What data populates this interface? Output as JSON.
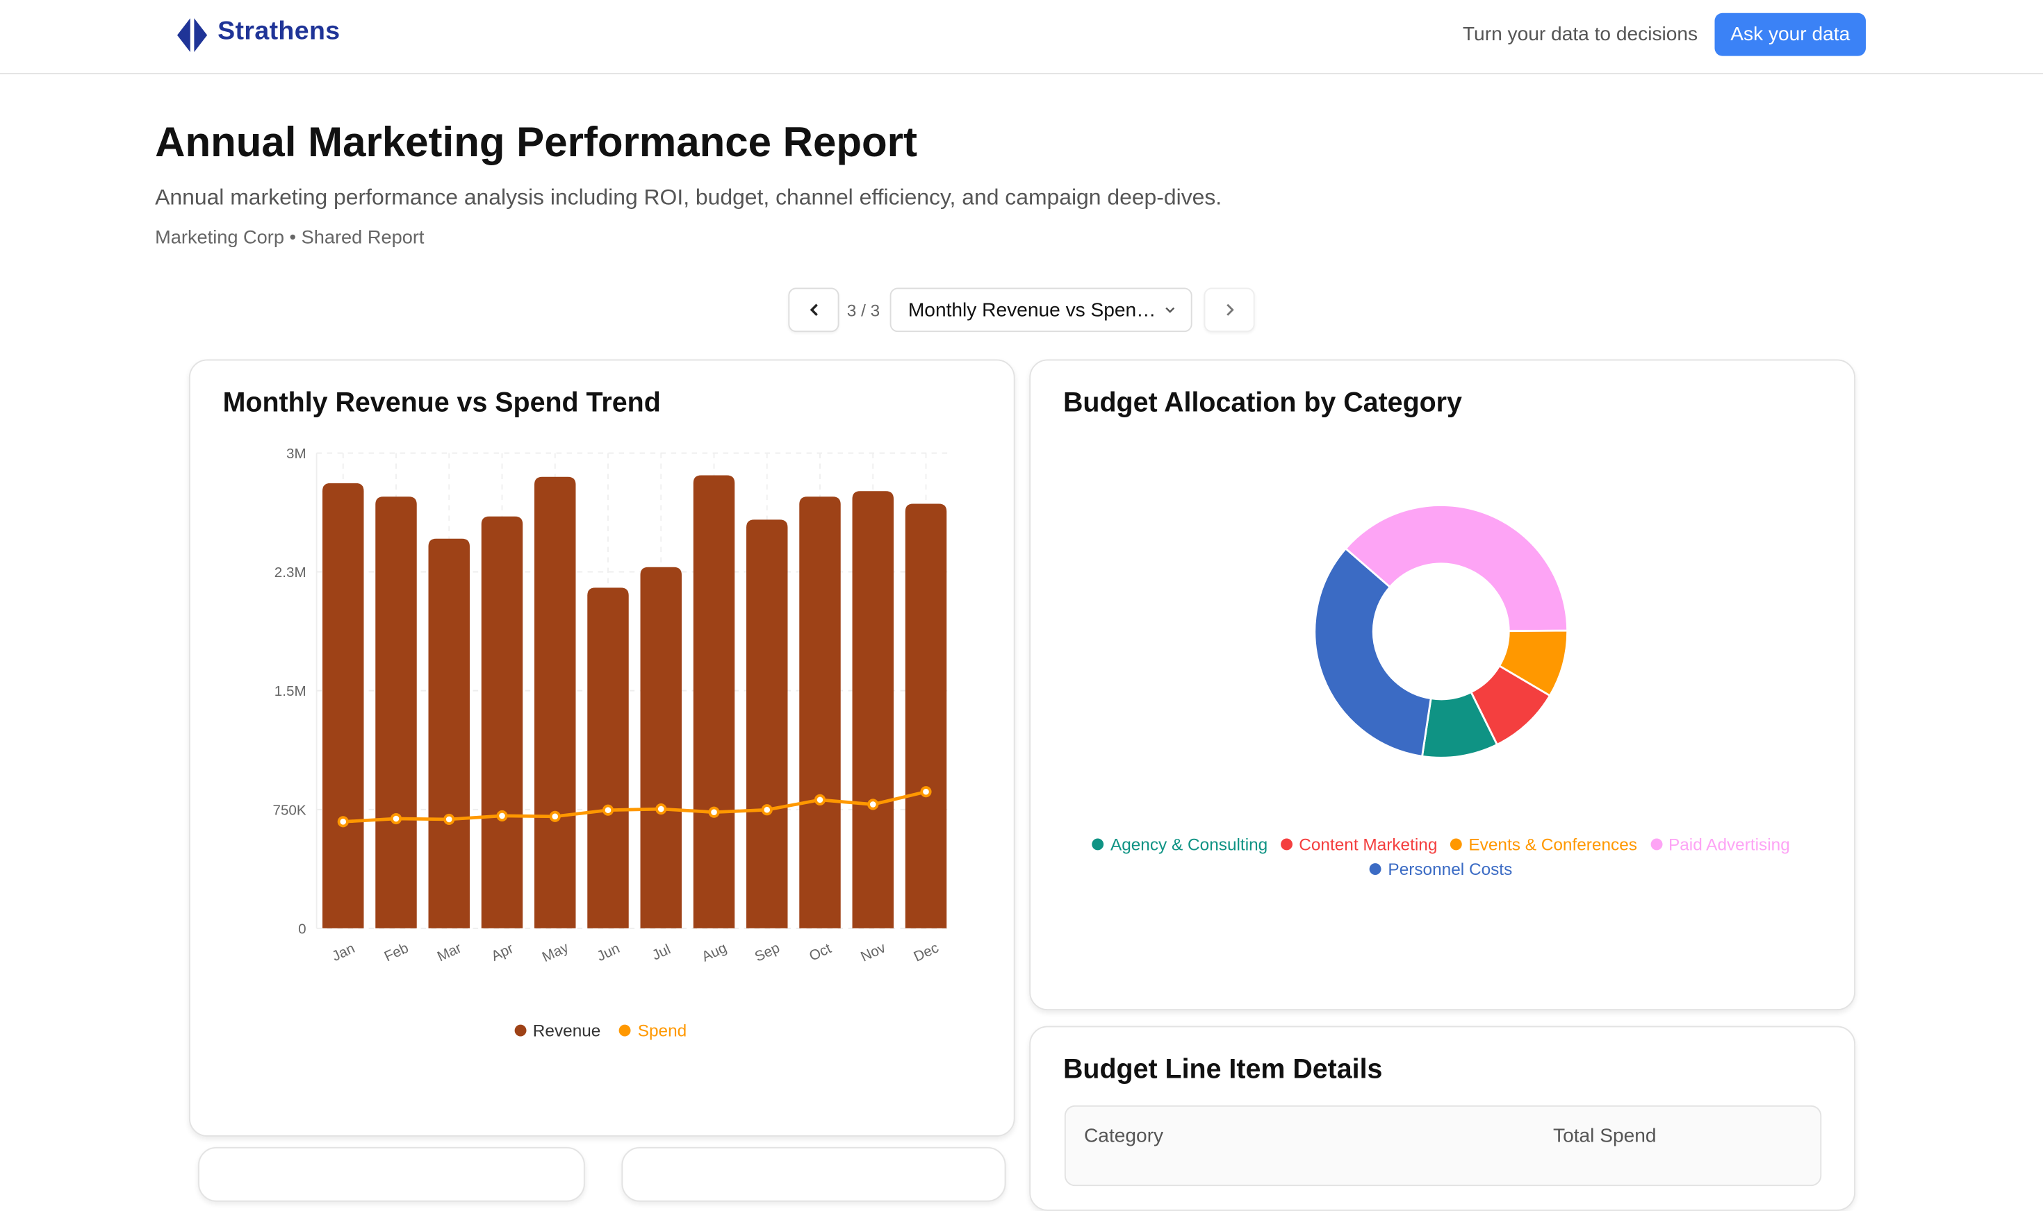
{
  "header": {
    "brand": "Strathens",
    "brand_color": "#1f3497",
    "tagline": "Turn your data to decisions",
    "cta_label": "Ask your data",
    "cta_color": "#3b82f6"
  },
  "report": {
    "title": "Annual Marketing Performance Report",
    "subtitle": "Annual marketing performance analysis including ROI, budget, channel efficiency, and campaign deep-dives.",
    "meta": "Marketing Corp • Shared Report"
  },
  "pager": {
    "count": "3 / 3",
    "selected": "Monthly Revenue vs Spen…",
    "prev_icon": "chevron-left-icon",
    "next_icon": "chevron-right-icon",
    "dropdown_icon": "chevron-down-icon"
  },
  "chart_data": [
    {
      "type": "bar",
      "title": "Monthly Revenue vs Spend Trend",
      "categories": [
        "Jan",
        "Feb",
        "Mar",
        "Apr",
        "May",
        "Jun",
        "Jul",
        "Aug",
        "Sep",
        "Oct",
        "Nov",
        "Dec"
      ],
      "ylim": [
        0,
        3000000
      ],
      "yticks": [
        "0",
        "750K",
        "1.5M",
        "2.3M",
        "3M"
      ],
      "grid": true,
      "legend": "bottom",
      "series": [
        {
          "name": "Revenue",
          "type": "bar",
          "color": "#9e4217",
          "values": [
            2810000,
            2725000,
            2460000,
            2600000,
            2850000,
            2150000,
            2280000,
            2860000,
            2580000,
            2725000,
            2760000,
            2680000
          ]
        },
        {
          "name": "Spend",
          "type": "line",
          "color": "#ff9800",
          "values": [
            673000,
            692000,
            688000,
            710000,
            706000,
            746000,
            753000,
            733000,
            748000,
            811000,
            782000,
            862000
          ]
        }
      ]
    },
    {
      "type": "pie",
      "title": "Budget Allocation by Category",
      "donut": true,
      "legend": "bottom",
      "slices": [
        {
          "name": "Paid Advertising",
          "value": 38.5,
          "color": "#fda4f5"
        },
        {
          "name": "Events & Conferences",
          "value": 8.6,
          "color": "#ff9800"
        },
        {
          "name": "Content Marketing",
          "value": 9.2,
          "color": "#f43f3f"
        },
        {
          "name": "Agency & Consulting",
          "value": 9.7,
          "color": "#0f9384"
        },
        {
          "name": "Personnel Costs",
          "value": 34.0,
          "color": "#3b6bc4"
        }
      ],
      "legend_order": [
        "Agency & Consulting",
        "Content Marketing",
        "Events & Conferences",
        "Paid Advertising",
        "Personnel Costs"
      ]
    }
  ],
  "table": {
    "title": "Budget Line Item Details",
    "columns": [
      "Category",
      "Total Spend"
    ]
  }
}
